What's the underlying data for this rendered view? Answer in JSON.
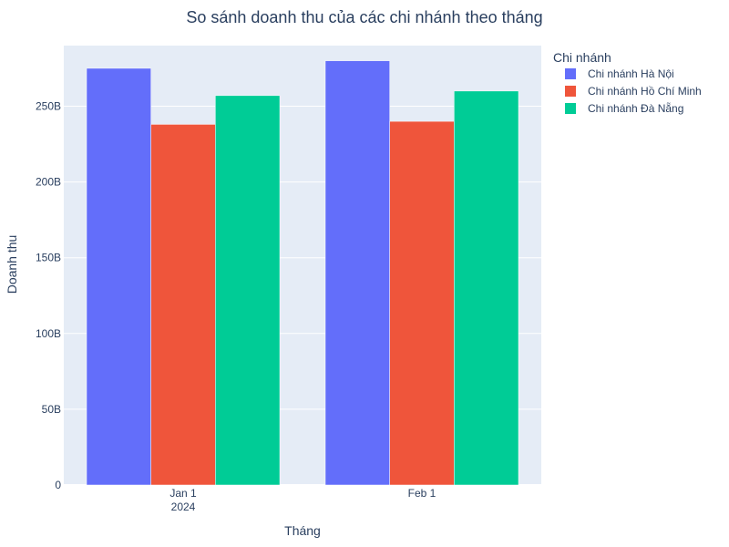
{
  "chart_data": {
    "type": "bar",
    "title": "So sánh doanh thu của các chi nhánh theo tháng",
    "xlabel": "Tháng",
    "ylabel": "Doanh thu",
    "categories": [
      "Jan 1\n2024",
      "Feb 1"
    ],
    "series": [
      {
        "name": "Chi nhánh Hà Nội",
        "values": [
          275,
          280
        ],
        "color": "#636efa"
      },
      {
        "name": "Chi nhánh Hồ Chí Minh",
        "values": [
          238,
          240
        ],
        "color": "#ef553b"
      },
      {
        "name": "Chi nhánh Đà Nẵng",
        "values": [
          257,
          260
        ],
        "color": "#00cc96"
      }
    ],
    "ylim": [
      0,
      290
    ],
    "yticks": [
      {
        "value": 0,
        "label": "0"
      },
      {
        "value": 50,
        "label": "50B"
      },
      {
        "value": 100,
        "label": "100B"
      },
      {
        "value": 150,
        "label": "150B"
      },
      {
        "value": 200,
        "label": "200B"
      },
      {
        "value": 250,
        "label": "250B"
      }
    ],
    "legend": {
      "title": "Chi nhánh",
      "placement": "right"
    },
    "grid": true,
    "plot_bg": "#e5ecf6"
  }
}
